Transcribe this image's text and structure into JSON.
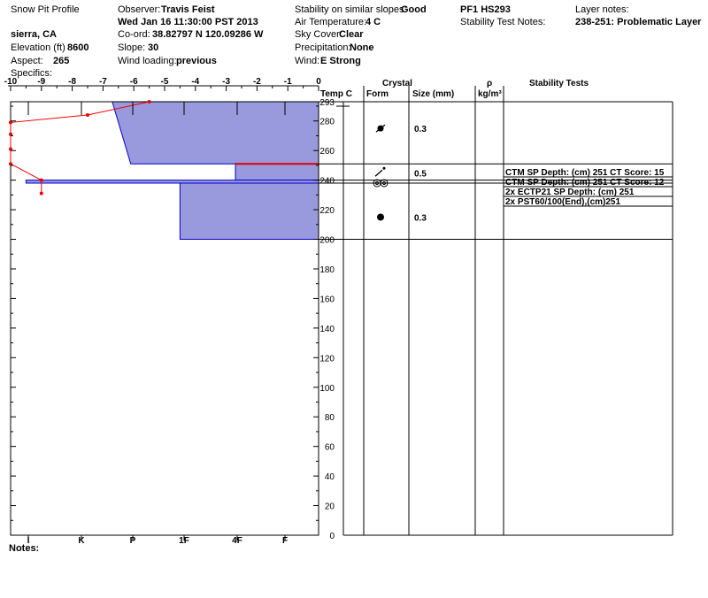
{
  "header": {
    "title": "Snow Pit Profile",
    "location": "sierra, CA",
    "elevation_label": "Elevation (ft)",
    "elevation": "8600",
    "aspect_label": "Aspect:",
    "aspect": "265",
    "specifics_label": "Specifics:",
    "observer_label": "Observer:",
    "observer": "Travis Feist",
    "date": "Wed Jan 16 11:30:00 PST 2013",
    "coord_label": "Co-ord:",
    "coord": "38.82797 N 120.09286 W",
    "slope_label": "Slope:",
    "slope": "30",
    "wind_loading_label": "Wind loading:",
    "wind_loading": "previous",
    "stability_label": "Stability on similar slopes:",
    "stability": "Good",
    "air_temp_label": "Air Temperature:",
    "air_temp": "4 C",
    "sky_label": "Sky Cover:",
    "sky": "Clear",
    "precip_label": "Precipitation:",
    "precip": "None",
    "wind_label": "Wind:",
    "wind": "E Strong",
    "pit_id": "PF1 HS293",
    "test_notes_label": "Stability Test Notes:",
    "layer_notes_label": "Layer notes:",
    "layer_notes": "238-251: Problematic Layer",
    "notes_label": "Notes:"
  },
  "columns": {
    "temp": "Temp C",
    "crystal": "Crystal",
    "form": "Form",
    "size": "Size (mm)",
    "rho": "ρ",
    "rho_unit": "kg/m³",
    "tests": "Stability Tests"
  },
  "colors": {
    "hardness_fill": "#9999dd",
    "hardness_edge": "#0000cc",
    "temperature": "#ee0000",
    "weak_layer": "#dd0000",
    "gridline": "#000000"
  },
  "chart_data": {
    "type": "area",
    "x_temperature_ticks": [
      "-10",
      "-9",
      "-8",
      "-7",
      "-6",
      "-5",
      "-4",
      "-3",
      "-2",
      "-1",
      "0"
    ],
    "x_temperature_range": [
      -10,
      0
    ],
    "x_hardness_ticks": [
      "I",
      "K",
      "P",
      "1F",
      "4F",
      "F"
    ],
    "y_ticks": [
      "0",
      "20",
      "40",
      "60",
      "80",
      "100",
      "120",
      "140",
      "160",
      "180",
      "200",
      "220",
      "240",
      "260",
      "280",
      "293"
    ],
    "y_range": [
      0,
      293
    ],
    "grid": false,
    "hardness_profile": [
      {
        "top": 293,
        "bottom": 251,
        "hardness_top": 6.7,
        "hardness_bottom": 6.1
      },
      {
        "top": 251,
        "bottom": 240,
        "hardness_top": 2.7,
        "hardness_bottom": 2.7
      },
      {
        "top": 240,
        "bottom": 238,
        "hardness_top": 9.5,
        "hardness_bottom": 9.5
      },
      {
        "top": 238,
        "bottom": 200,
        "hardness_top": 4.5,
        "hardness_bottom": 4.5
      }
    ],
    "temperature_profile": [
      {
        "t": -5.5,
        "h": 293
      },
      {
        "t": -7.5,
        "h": 284
      },
      {
        "t": -10.0,
        "h": 279
      },
      {
        "t": -10.0,
        "h": 271
      },
      {
        "t": -10.0,
        "h": 261
      },
      {
        "t": -10.0,
        "h": 251
      },
      {
        "t": -9.0,
        "h": 240
      },
      {
        "t": -9.0,
        "h": 231
      }
    ],
    "weak_layer_depth": 251,
    "layer_boundaries": [
      251,
      240,
      238,
      200
    ],
    "crystal_layers": [
      {
        "h": 275,
        "form": "rounding-icon",
        "size": "0.3"
      },
      {
        "h": 245,
        "form": "precipitation-particle-icon",
        "size": "0.5"
      },
      {
        "h": 238,
        "form": "surface-hoar-icon",
        "size": ""
      },
      {
        "h": 215,
        "form": "rounded-grain-icon",
        "size": "0.3"
      }
    ],
    "stability_tests": [
      "CTM SP Depth: (cm) 251 CT Score: 15",
      "CTM SP Depth: (cm) 251 CT Score: 12",
      "2x ECTP21 SP Depth: (cm) 251",
      "2x PST60/100(End),(cm)251"
    ]
  }
}
